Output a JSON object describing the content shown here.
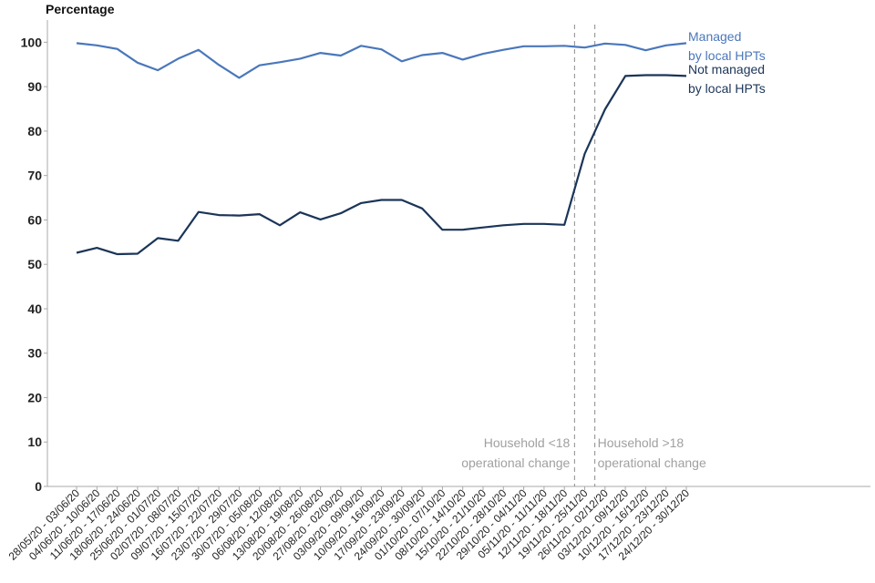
{
  "chart_data": {
    "type": "line",
    "ylabel": "Percentage",
    "ylim": [
      0,
      105
    ],
    "yticks": [
      0,
      10,
      20,
      30,
      40,
      50,
      60,
      70,
      80,
      90,
      100
    ],
    "grid": false,
    "categories": [
      "28/05/20 - 03/06/20",
      "04/06/20 - 10/06/20",
      "11/06/20 - 17/06/20",
      "18/06/20 - 24/06/20",
      "25/06/20 - 01/07/20",
      "02/07/20 - 08/07/20",
      "09/07/20 - 15/07/20",
      "16/07/20 - 22/07/20",
      "23/07/20 - 29/07/20",
      "30/07/20 - 05/08/20",
      "06/08/20 - 12/08/20",
      "13/08/20 - 19/08/20",
      "20/08/20 - 26/08/20",
      "27/08/20 - 02/09/20",
      "03/09/20 - 09/09/20",
      "10/09/20 - 16/09/20",
      "17/09/20 - 23/09/20",
      "24/09/20 - 30/09/20",
      "01/10/20 - 07/10/20",
      "08/10/20 - 14/10/20",
      "15/10/20 - 21/10/20",
      "22/10/20 - 28/10/20",
      "29/10/20 - 04/11/20",
      "05/11/20 - 11/11/20",
      "12/11/20 - 18/11/20",
      "19/11/20 - 25/11/20",
      "26/11/20 - 02/12/20",
      "03/12/20 - 09/12/20",
      "10/12/20 - 16/12/20",
      "17/12/20 - 23/12/20",
      "24/12/20 - 30/12/20"
    ],
    "series": [
      {
        "name": "Managed by local HPTs",
        "label_lines": [
          "Managed",
          "by local HPTs"
        ],
        "color": "#4a77bb",
        "values": [
          99.8,
          99.3,
          98.5,
          95.4,
          93.7,
          96.3,
          98.3,
          94.9,
          92.0,
          94.8,
          95.5,
          96.3,
          97.6,
          97.0,
          99.2,
          98.4,
          95.7,
          97.1,
          97.6,
          96.1,
          97.4,
          98.3,
          99.1,
          99.1,
          99.2,
          98.8,
          99.7,
          99.4,
          98.2,
          99.3,
          99.8
        ]
      },
      {
        "name": "Not managed by local HPTs",
        "label_lines": [
          "Not managed",
          "by local HPTs"
        ],
        "color": "#1b3558",
        "values": [
          52.6,
          53.7,
          52.3,
          52.4,
          55.9,
          55.3,
          61.8,
          61.1,
          61.0,
          61.3,
          58.8,
          61.7,
          60.1,
          61.5,
          63.8,
          64.5,
          64.5,
          62.6,
          57.8,
          57.8,
          58.3,
          58.8,
          59.1,
          59.1,
          58.9,
          74.9,
          84.9,
          92.4,
          92.6,
          92.6,
          92.4
        ]
      }
    ],
    "annotations": [
      {
        "at_between": [
          24,
          25
        ],
        "text_lines": [
          "Household <18",
          "operational change"
        ],
        "side": "left"
      },
      {
        "at_between": [
          25,
          26
        ],
        "text_lines": [
          "Household >18",
          "operational change"
        ],
        "side": "right"
      }
    ]
  }
}
